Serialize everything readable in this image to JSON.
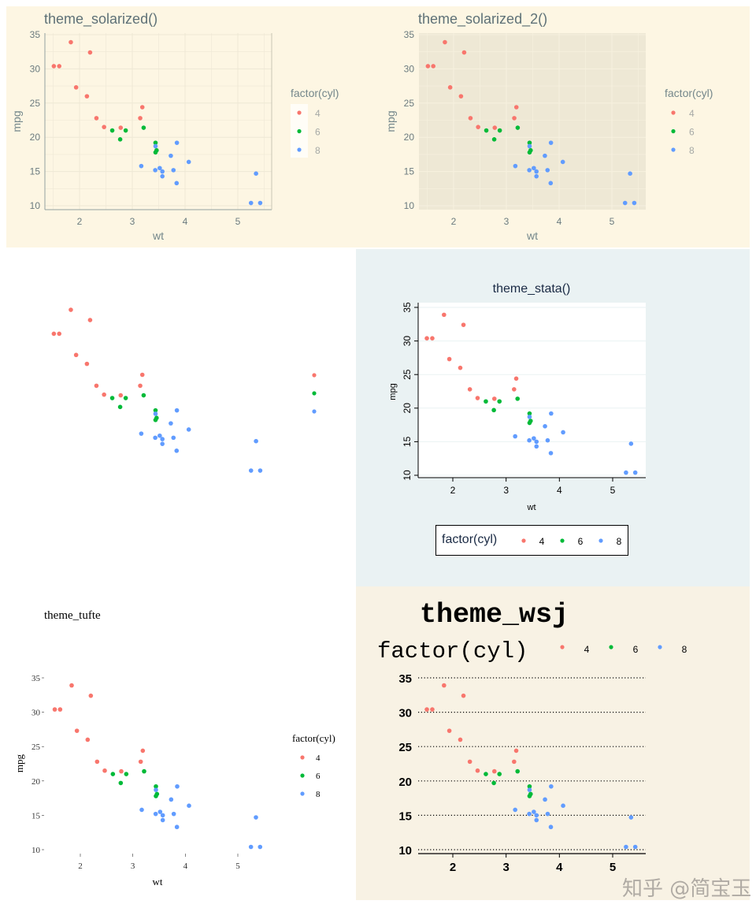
{
  "chart_data": {
    "type": "scatter",
    "xlabel": "wt",
    "ylabel": "mpg",
    "xticks": [
      "2",
      "3",
      "4",
      "5"
    ],
    "yticks": [
      "10",
      "15",
      "20",
      "25",
      "30",
      "35"
    ],
    "xlim": [
      1.35,
      5.6
    ],
    "ylim": [
      9.4,
      35.2
    ],
    "legend_title": "factor(cyl)",
    "colors": {
      "4": "#F8766D",
      "6": "#00BA38",
      "8": "#619CFF"
    },
    "series": [
      {
        "name": "4",
        "x": [
          2.32,
          3.19,
          3.15,
          2.2,
          1.615,
          1.835,
          2.465,
          1.935,
          2.14,
          1.513,
          2.78
        ],
        "y": [
          22.8,
          24.4,
          22.8,
          32.4,
          30.4,
          33.9,
          21.5,
          27.3,
          26.0,
          30.4,
          21.4
        ]
      },
      {
        "name": "6",
        "x": [
          2.62,
          2.875,
          3.215,
          3.46,
          3.44,
          3.44,
          2.77
        ],
        "y": [
          21.0,
          21.0,
          21.4,
          18.1,
          19.2,
          17.8,
          19.7
        ]
      },
      {
        "name": "8",
        "x": [
          3.44,
          3.57,
          4.07,
          3.73,
          3.78,
          5.25,
          5.424,
          5.345,
          3.52,
          3.435,
          3.84,
          3.845,
          3.17,
          3.57
        ],
        "y": [
          18.7,
          14.3,
          16.4,
          17.3,
          15.2,
          10.4,
          10.4,
          14.7,
          15.5,
          15.2,
          13.3,
          19.2,
          15.8,
          15.0
        ]
      }
    ],
    "panels": [
      {
        "id": "solarized",
        "title": "theme_solarized()",
        "legend": "right",
        "grid": true
      },
      {
        "id": "solarized2",
        "title": "theme_solarized_2()",
        "legend": "right",
        "grid": true
      },
      {
        "id": "void",
        "title": "",
        "legend": "right-keys-only",
        "grid": false
      },
      {
        "id": "stata",
        "title": "theme_stata()",
        "legend": "bottom",
        "grid": true
      },
      {
        "id": "tufte",
        "title": "theme_tufte",
        "legend": "right",
        "grid": false
      },
      {
        "id": "wsj",
        "title": "theme_wsj",
        "legend": "top",
        "grid": true
      }
    ]
  },
  "watermark": "知乎 @简宝玉"
}
